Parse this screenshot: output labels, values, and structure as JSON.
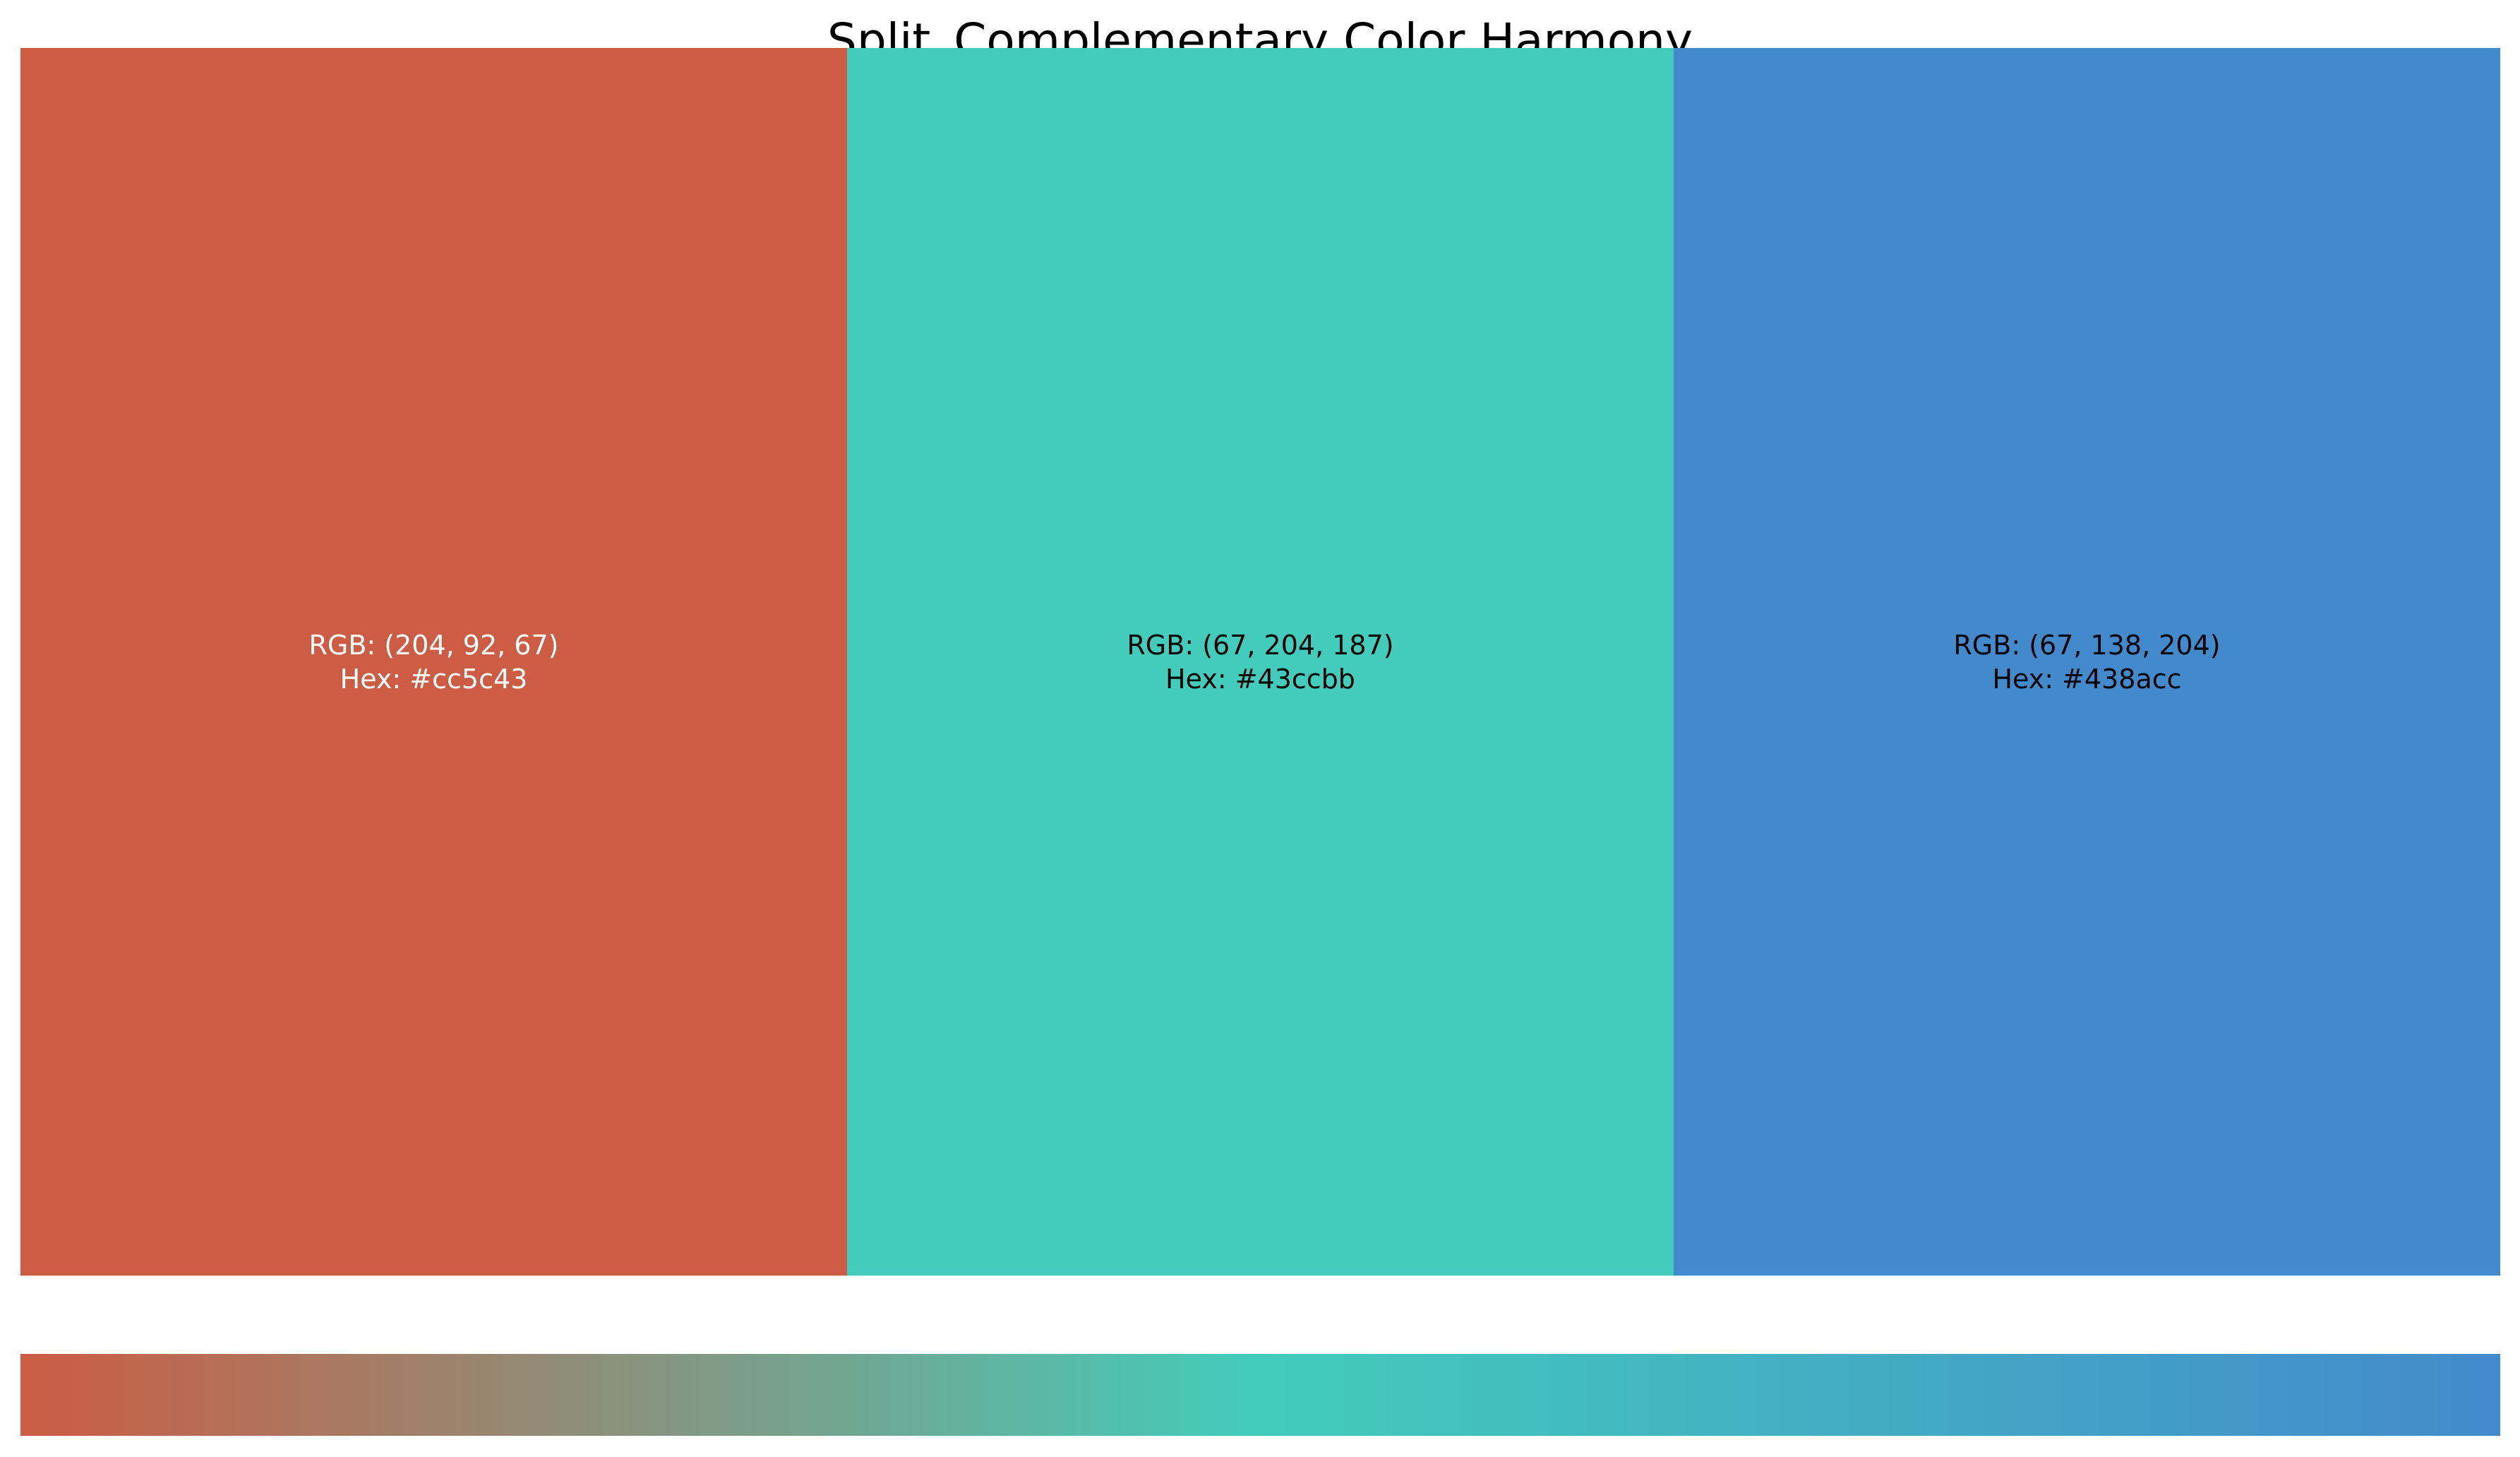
{
  "chart_data": {
    "type": "color-palette",
    "title": "Split_Complementary Color Harmony",
    "swatches": [
      {
        "rgb_label": "RGB: (204, 92, 67)",
        "hex_label": "Hex: #cc5c43",
        "color": "#cc5c43",
        "text_color": "#ffffff"
      },
      {
        "rgb_label": "RGB: (67, 204, 187)",
        "hex_label": "Hex: #43ccbb",
        "color": "#43ccbb",
        "text_color": "#000000"
      },
      {
        "rgb_label": "RGB: (67, 138, 204)",
        "hex_label": "Hex: #438acc",
        "color": "#438acc",
        "text_color": "#000000"
      }
    ],
    "gradient_stops": [
      "#cc5c43",
      "#43ccbb",
      "#438acc"
    ]
  }
}
